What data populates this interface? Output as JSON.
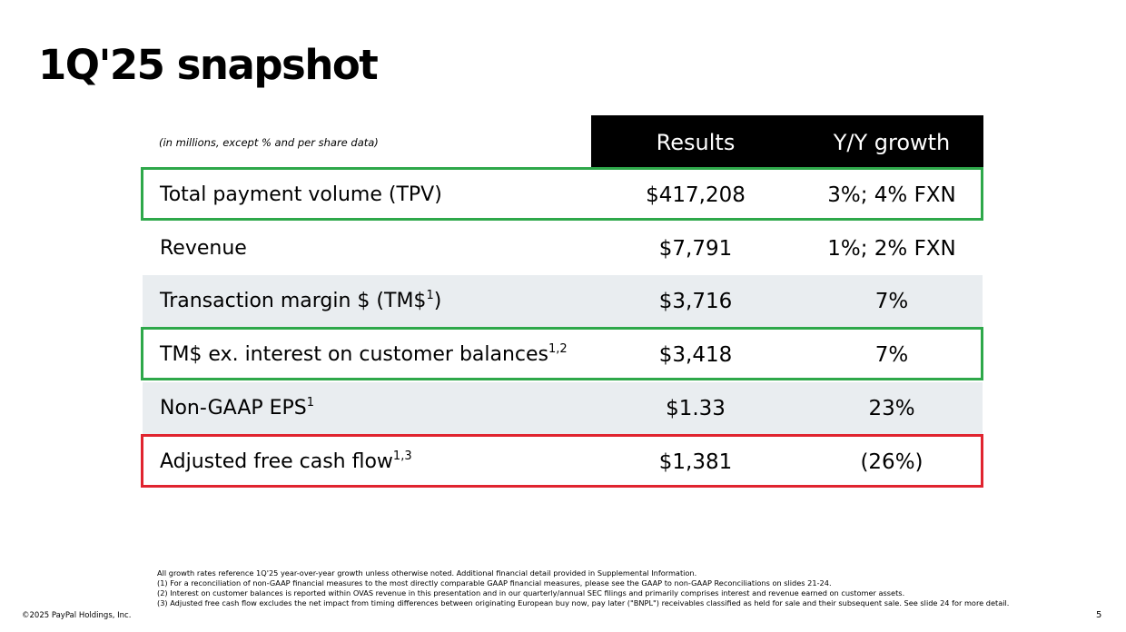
{
  "slide": {
    "title": "1Q'25 snapshot",
    "page_number": "5",
    "copyright": "©2025 PayPal Holdings, Inc."
  },
  "table": {
    "units_note": "(in millions, except % and per share data)",
    "headers": {
      "results": "Results",
      "growth": "Y/Y growth"
    },
    "rows": [
      {
        "label": "Total payment volume (TPV)",
        "sup": "",
        "result": "$417,208",
        "growth": "3%; 4% FXN",
        "highlight": "green"
      },
      {
        "label": "Revenue",
        "sup": "",
        "result": "$7,791",
        "growth": "1%; 2% FXN",
        "highlight": ""
      },
      {
        "label": "Transaction margin $ (TM$",
        "sup": "1",
        "suffix": ")",
        "result": "$3,716",
        "growth": "7%",
        "highlight": ""
      },
      {
        "label": "TM$ ex. interest on customer balances",
        "sup": "1,2",
        "result": "$3,418",
        "growth": "7%",
        "highlight": "green"
      },
      {
        "label": "Non-GAAP EPS",
        "sup": "1",
        "result": "$1.33",
        "growth": "23%",
        "highlight": ""
      },
      {
        "label": "Adjusted free cash flow",
        "sup": "1,3",
        "result": "$1,381",
        "growth": "(26%)",
        "highlight": "red"
      }
    ]
  },
  "colors": {
    "green": "#2ea84a",
    "red": "#e0242f",
    "header_bg": "#000000",
    "row_shade": "#e9edf0"
  },
  "footnotes": [
    "All growth rates reference 1Q'25 year-over-year growth unless otherwise noted. Additional financial detail provided in Supplemental Information.",
    "(1) For a reconciliation of non-GAAP financial measures to the most directly comparable GAAP financial measures, please see the GAAP to non-GAAP Reconciliations on slides 21-24.",
    "(2) Interest on customer balances is reported within OVAS revenue in this presentation and in our quarterly/annual SEC filings and primarily comprises interest and revenue earned on customer assets.",
    "(3) Adjusted free cash flow excludes the net impact from timing differences between originating European buy now, pay later (\"BNPL\") receivables classified as held for sale and their subsequent sale. See slide 24 for more detail."
  ]
}
